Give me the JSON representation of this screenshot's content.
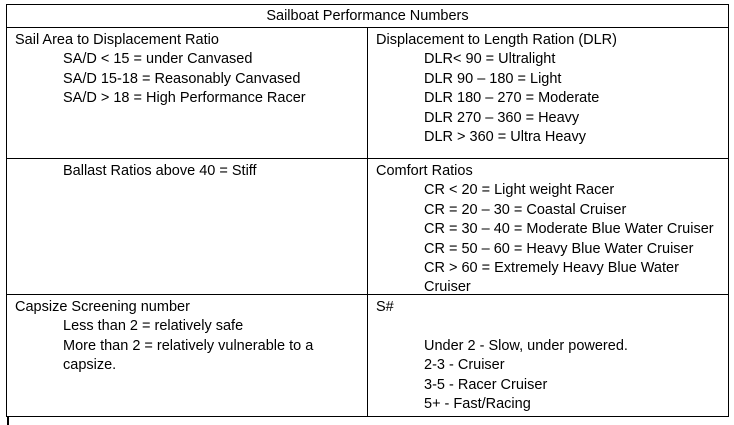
{
  "document": {
    "title": "Sailboat Performance Numbers",
    "colors": {
      "border": "#000000",
      "text": "#000000",
      "background": "#ffffff"
    },
    "table": {
      "rows": [
        {
          "left": {
            "lines": [
              "Sail Area to Displacement Ratio",
              "SA/D < 15 = under Canvased",
              "SA/D 15-18 = Reasonably Canvased",
              "SA/D > 18 = High Performance Racer"
            ]
          },
          "right": {
            "lines": [
              "Displacement to Length Ration (DLR)",
              "DLR< 90 = Ultralight",
              "DLR 90 – 180 = Light",
              "DLR 180 – 270 = Moderate",
              "DLR 270 – 360 = Heavy",
              "DLR > 360 = Ultra Heavy"
            ]
          }
        },
        {
          "left": {
            "lines": [
              "Ballast Ratios above 40 = Stiff"
            ]
          },
          "right": {
            "lines": [
              "Comfort Ratios",
              "CR < 20 = Light weight Racer",
              "CR = 20 – 30 = Coastal Cruiser",
              "CR = 30 – 40 = Moderate Blue Water Cruiser",
              "CR = 50 – 60 = Heavy Blue Water Cruiser",
              "CR > 60 = Extremely Heavy Blue Water",
              "Cruiser"
            ]
          }
        },
        {
          "left": {
            "lines": [
              "Capsize Screening number",
              "Less than 2 = relatively safe",
              "More than 2 = relatively vulnerable to a",
              "capsize."
            ]
          },
          "right": {
            "lines": [
              "S#",
              "",
              "Under 2 - Slow, under powered.",
              "2-3 - Cruiser",
              "3-5 - Racer Cruiser",
              "5+ - Fast/Racing"
            ]
          }
        }
      ]
    }
  }
}
